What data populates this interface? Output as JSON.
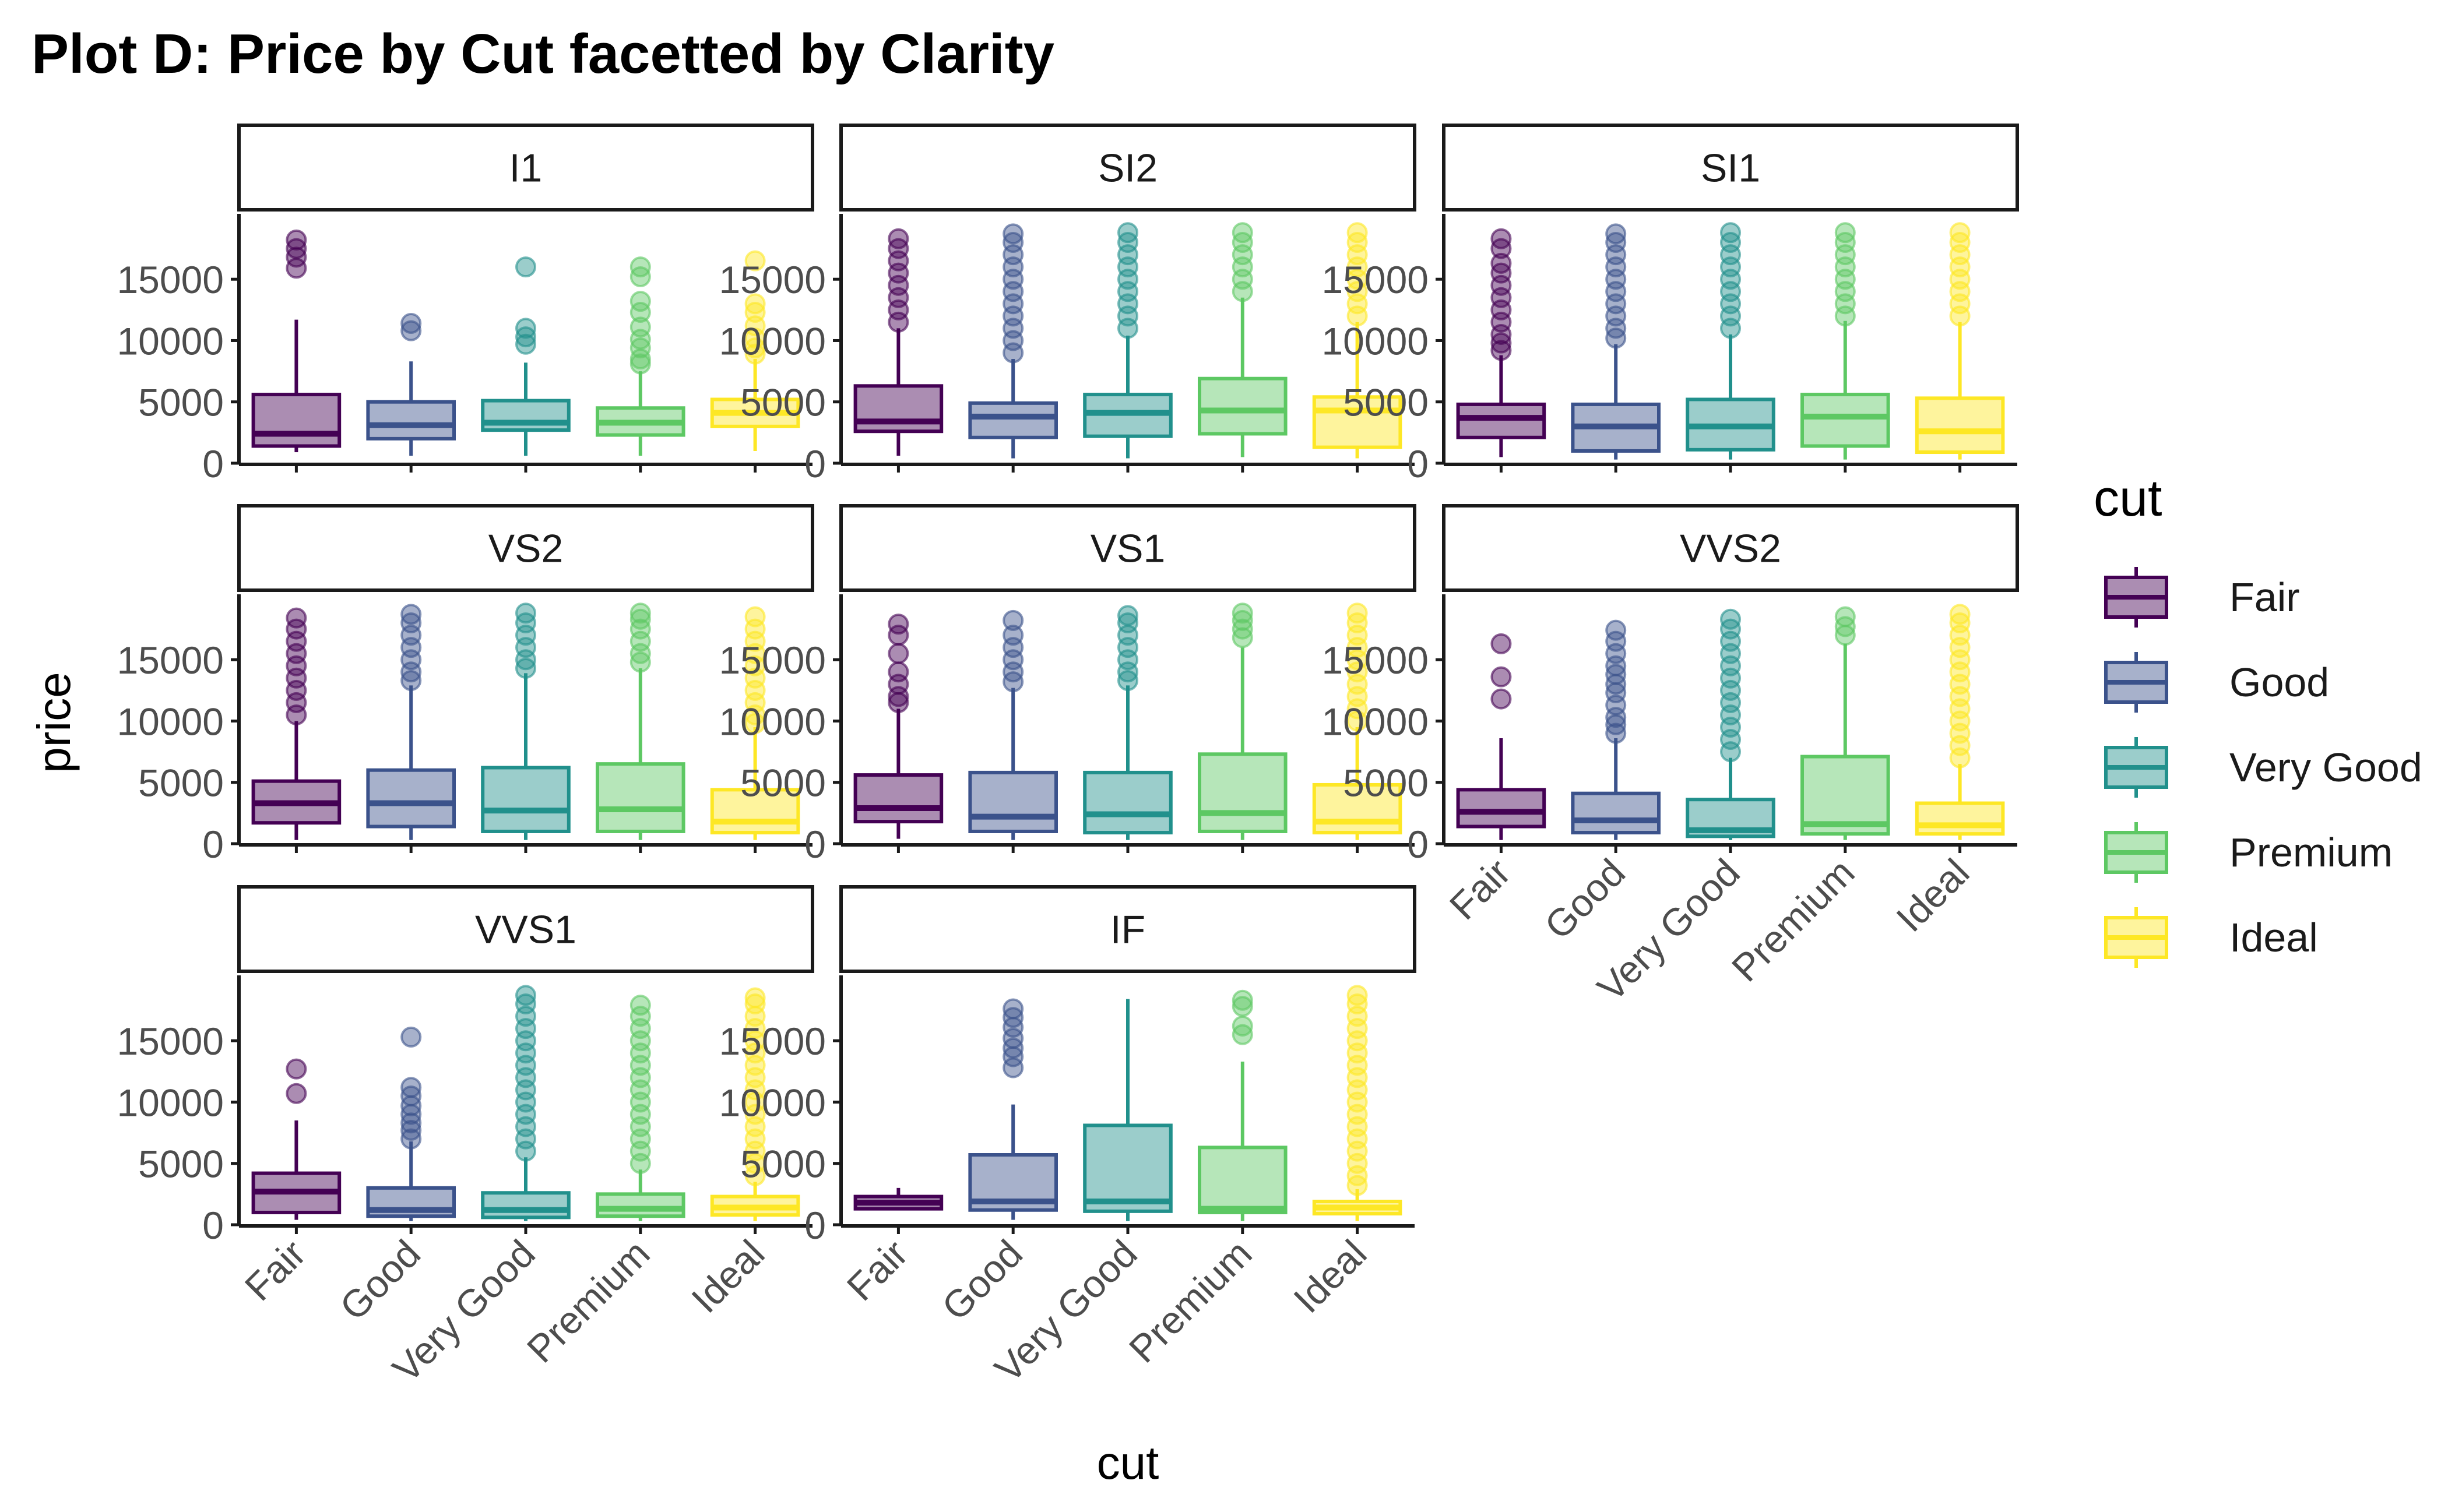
{
  "chart_data": {
    "type": "boxplot",
    "title": "Plot D: Price by Cut facetted by Clarity",
    "xlabel": "cut",
    "ylabel": "price",
    "ylim": [
      0,
      19000
    ],
    "yticks": [
      0,
      5000,
      10000,
      15000
    ],
    "ytick_labels": [
      "0",
      "5000",
      "10000",
      "15000"
    ],
    "categories": [
      "Fair",
      "Good",
      "Very Good",
      "Premium",
      "Ideal"
    ],
    "legend": {
      "title": "cut",
      "position": "right",
      "items": [
        "Fair",
        "Good",
        "Very Good",
        "Premium",
        "Ideal"
      ]
    },
    "colors": {
      "Fair": "#440154",
      "Good": "#3b528b",
      "Very Good": "#21908c",
      "Premium": "#5dc863",
      "Ideal": "#fde725"
    },
    "facets": [
      {
        "clarity": "I1",
        "boxes": [
          {
            "cut": "Fair",
            "q1": 1400,
            "median": 2400,
            "q3": 5600,
            "low": 900,
            "high": 11700,
            "outliers": [
              15900,
              16800,
              17500,
              18200
            ]
          },
          {
            "cut": "Good",
            "q1": 2000,
            "median": 3100,
            "q3": 5000,
            "low": 600,
            "high": 8300,
            "outliers": [
              10800,
              11400
            ]
          },
          {
            "cut": "Very Good",
            "q1": 2700,
            "median": 3300,
            "q3": 5100,
            "low": 600,
            "high": 8200,
            "outliers": [
              9700,
              10300,
              11000,
              16000
            ]
          },
          {
            "cut": "Premium",
            "q1": 2300,
            "median": 3300,
            "q3": 4500,
            "low": 600,
            "high": 7500,
            "outliers": [
              8100,
              8500,
              9400,
              10100,
              11100,
              12300,
              13200,
              15200,
              16000
            ]
          },
          {
            "cut": "Ideal",
            "q1": 3000,
            "median": 4100,
            "q3": 5200,
            "low": 1000,
            "high": 8500,
            "outliers": [
              8900,
              9400,
              10200,
              11200,
              12300,
              13000,
              16500
            ]
          }
        ]
      },
      {
        "clarity": "SI2",
        "boxes": [
          {
            "cut": "Fair",
            "q1": 2600,
            "median": 3400,
            "q3": 6300,
            "low": 600,
            "high": 11000,
            "outliers": [
              11500,
              12500,
              13500,
              14500,
              15500,
              16500,
              17500,
              18300
            ]
          },
          {
            "cut": "Good",
            "q1": 2100,
            "median": 3800,
            "q3": 4900,
            "low": 400,
            "high": 8500,
            "outliers": [
              9000,
              10000,
              11000,
              12000,
              13000,
              14000,
              15000,
              16000,
              17000,
              18000,
              18700
            ]
          },
          {
            "cut": "Very Good",
            "q1": 2200,
            "median": 4100,
            "q3": 5600,
            "low": 400,
            "high": 10400,
            "outliers": [
              11000,
              12000,
              13000,
              14000,
              15000,
              16000,
              17000,
              18000,
              18800
            ]
          },
          {
            "cut": "Premium",
            "q1": 2400,
            "median": 4300,
            "q3": 6900,
            "low": 500,
            "high": 13500,
            "outliers": [
              14000,
              15000,
              16000,
              17000,
              18000,
              18800
            ]
          },
          {
            "cut": "Ideal",
            "q1": 1300,
            "median": 4300,
            "q3": 5400,
            "low": 400,
            "high": 11500,
            "outliers": [
              12000,
              13000,
              14000,
              15000,
              16000,
              17000,
              18000,
              18800
            ]
          }
        ]
      },
      {
        "clarity": "SI1",
        "boxes": [
          {
            "cut": "Fair",
            "q1": 2100,
            "median": 3700,
            "q3": 4800,
            "low": 500,
            "high": 8800,
            "outliers": [
              9200,
              9800,
              10500,
              11500,
              12500,
              13500,
              14500,
              15500,
              16300,
              17500,
              18300
            ]
          },
          {
            "cut": "Good",
            "q1": 1000,
            "median": 3000,
            "q3": 4800,
            "low": 300,
            "high": 9700,
            "outliers": [
              10200,
              11000,
              12000,
              13000,
              14000,
              15000,
              16000,
              17000,
              18000,
              18700
            ]
          },
          {
            "cut": "Very Good",
            "q1": 1100,
            "median": 3000,
            "q3": 5200,
            "low": 300,
            "high": 10500,
            "outliers": [
              11000,
              12000,
              13000,
              14000,
              15000,
              16000,
              17000,
              18000,
              18800
            ]
          },
          {
            "cut": "Premium",
            "q1": 1400,
            "median": 3800,
            "q3": 5600,
            "low": 300,
            "high": 11600,
            "outliers": [
              12000,
              13000,
              14000,
              15000,
              16000,
              17000,
              18000,
              18800
            ]
          },
          {
            "cut": "Ideal",
            "q1": 900,
            "median": 2600,
            "q3": 5300,
            "low": 300,
            "high": 11500,
            "outliers": [
              12000,
              13000,
              14000,
              15000,
              16000,
              17000,
              18000,
              18800
            ]
          }
        ]
      },
      {
        "clarity": "VS2",
        "boxes": [
          {
            "cut": "Fair",
            "q1": 1700,
            "median": 3300,
            "q3": 5100,
            "low": 300,
            "high": 10000,
            "outliers": [
              10500,
              11500,
              12500,
              13500,
              14500,
              15500,
              16500,
              17500,
              18400
            ]
          },
          {
            "cut": "Good",
            "q1": 1400,
            "median": 3300,
            "q3": 6000,
            "low": 300,
            "high": 12900,
            "outliers": [
              13300,
              14000,
              15000,
              16000,
              17000,
              18000,
              18700
            ]
          },
          {
            "cut": "Very Good",
            "q1": 1000,
            "median": 2700,
            "q3": 6200,
            "low": 300,
            "high": 13900,
            "outliers": [
              14300,
              15000,
              16000,
              17000,
              18000,
              18800
            ]
          },
          {
            "cut": "Premium",
            "q1": 1000,
            "median": 2800,
            "q3": 6500,
            "low": 300,
            "high": 14300,
            "outliers": [
              14800,
              15500,
              16500,
              17500,
              18300,
              18800
            ]
          },
          {
            "cut": "Ideal",
            "q1": 900,
            "median": 1800,
            "q3": 4400,
            "low": 300,
            "high": 9500,
            "outliers": [
              9800,
              10500,
              11500,
              12500,
              13500,
              14500,
              15500,
              16500,
              17500,
              18500
            ]
          }
        ]
      },
      {
        "clarity": "VS1",
        "boxes": [
          {
            "cut": "Fair",
            "q1": 1800,
            "median": 2900,
            "q3": 5600,
            "low": 400,
            "high": 11000,
            "outliers": [
              11500,
              12000,
              13000,
              14000,
              15500,
              17000,
              17900
            ]
          },
          {
            "cut": "Good",
            "q1": 1000,
            "median": 2200,
            "q3": 5800,
            "low": 300,
            "high": 12700,
            "outliers": [
              13200,
              14000,
              15000,
              16000,
              17000,
              18200
            ]
          },
          {
            "cut": "Very Good",
            "q1": 900,
            "median": 2400,
            "q3": 5800,
            "low": 300,
            "high": 12900,
            "outliers": [
              13300,
              14000,
              15000,
              16000,
              17000,
              18000,
              18600
            ]
          },
          {
            "cut": "Premium",
            "q1": 1000,
            "median": 2500,
            "q3": 7300,
            "low": 300,
            "high": 16000,
            "outliers": [
              16800,
              17500,
              18200,
              18800
            ]
          },
          {
            "cut": "Ideal",
            "q1": 900,
            "median": 1800,
            "q3": 4800,
            "low": 300,
            "high": 9500,
            "outliers": [
              10000,
              11000,
              12000,
              13000,
              14000,
              15000,
              16000,
              17000,
              18000,
              18800
            ]
          }
        ]
      },
      {
        "clarity": "VVS2",
        "boxes": [
          {
            "cut": "Fair",
            "q1": 1400,
            "median": 2600,
            "q3": 4400,
            "low": 300,
            "high": 8600,
            "outliers": [
              11800,
              13600,
              16300
            ]
          },
          {
            "cut": "Good",
            "q1": 900,
            "median": 1900,
            "q3": 4100,
            "low": 300,
            "high": 8600,
            "outliers": [
              9000,
              9700,
              10300,
              11300,
              12300,
              13000,
              13800,
              14500,
              15500,
              16500,
              17400
            ]
          },
          {
            "cut": "Very Good",
            "q1": 600,
            "median": 1100,
            "q3": 3600,
            "low": 300,
            "high": 7000,
            "outliers": [
              7500,
              8500,
              9500,
              10500,
              11500,
              12500,
              13500,
              14500,
              15500,
              16500,
              17500,
              18300
            ]
          },
          {
            "cut": "Premium",
            "q1": 800,
            "median": 1600,
            "q3": 7100,
            "low": 300,
            "high": 16300,
            "outliers": [
              17000,
              17700,
              18500
            ]
          },
          {
            "cut": "Ideal",
            "q1": 800,
            "median": 1500,
            "q3": 3300,
            "low": 300,
            "high": 6500,
            "outliers": [
              7000,
              8000,
              9000,
              10000,
              11000,
              12000,
              13000,
              14000,
              15000,
              16000,
              17000,
              18000,
              18700
            ]
          }
        ]
      },
      {
        "clarity": "VVS1",
        "boxes": [
          {
            "cut": "Fair",
            "q1": 1000,
            "median": 2700,
            "q3": 4200,
            "low": 400,
            "high": 8500,
            "outliers": [
              10700,
              12700
            ]
          },
          {
            "cut": "Good",
            "q1": 700,
            "median": 1200,
            "q3": 3000,
            "low": 300,
            "high": 6800,
            "outliers": [
              7000,
              7700,
              8300,
              9000,
              9700,
              10500,
              11200,
              15300
            ]
          },
          {
            "cut": "Very Good",
            "q1": 600,
            "median": 1200,
            "q3": 2600,
            "low": 300,
            "high": 5500,
            "outliers": [
              6000,
              7000,
              8000,
              9000,
              10000,
              11000,
              12000,
              13000,
              14000,
              15000,
              16000,
              17000,
              18000,
              18700
            ]
          },
          {
            "cut": "Premium",
            "q1": 700,
            "median": 1300,
            "q3": 2500,
            "low": 300,
            "high": 4500,
            "outliers": [
              5000,
              6000,
              7000,
              8000,
              9000,
              10000,
              11000,
              12000,
              13000,
              14000,
              15000,
              16000,
              17000,
              17900
            ]
          },
          {
            "cut": "Ideal",
            "q1": 800,
            "median": 1400,
            "q3": 2300,
            "low": 300,
            "high": 3500,
            "outliers": [
              4000,
              5000,
              6000,
              7000,
              8000,
              9000,
              10000,
              11000,
              12000,
              13000,
              14000,
              15000,
              16000,
              17000,
              18000,
              18500
            ]
          }
        ]
      },
      {
        "clarity": "IF",
        "boxes": [
          {
            "cut": "Fair",
            "q1": 1300,
            "median": 1800,
            "q3": 2300,
            "low": 1200,
            "high": 3000,
            "outliers": []
          },
          {
            "cut": "Good",
            "q1": 1200,
            "median": 1900,
            "q3": 5700,
            "low": 400,
            "high": 9800,
            "outliers": [
              12800,
              13700,
              14400,
              15200,
              16100,
              16900,
              17600
            ]
          },
          {
            "cut": "Very Good",
            "q1": 1100,
            "median": 1900,
            "q3": 8100,
            "low": 300,
            "high": 18400,
            "outliers": []
          },
          {
            "cut": "Premium",
            "q1": 1000,
            "median": 1300,
            "q3": 6300,
            "low": 300,
            "high": 13300,
            "outliers": [
              15500,
              16200,
              17800,
              18300
            ]
          },
          {
            "cut": "Ideal",
            "q1": 900,
            "median": 1400,
            "q3": 1900,
            "low": 300,
            "high": 2900,
            "outliers": [
              3200,
              4000,
              5000,
              6000,
              7000,
              8000,
              9000,
              10000,
              11000,
              12000,
              13000,
              14000,
              15000,
              16000,
              17000,
              18000,
              18700
            ]
          }
        ]
      }
    ]
  }
}
